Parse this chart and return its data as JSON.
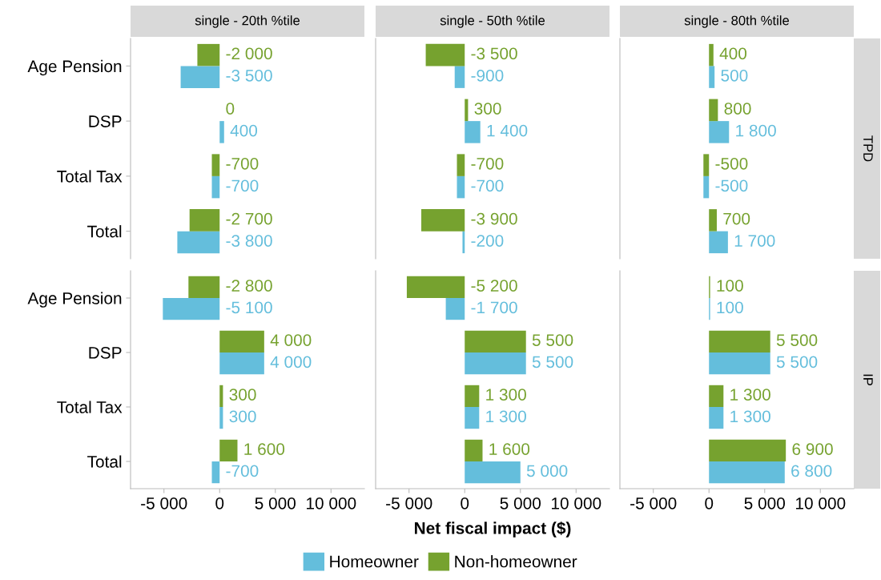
{
  "chart_data": [
    {
      "type": "bar",
      "orientation": "horizontal",
      "title": "single - 20th %tile",
      "legend": "bottom",
      "categories": [
        "Age Pension",
        "DSP",
        "Total Tax",
        "Total"
      ],
      "series": [
        {
          "name": "Homeowner",
          "color": "#64bedc",
          "values": [
            -3500,
            400,
            -700,
            -3800
          ]
        },
        {
          "name": "Non-homeowner",
          "color": "#76a22f",
          "values": [
            -2000,
            0,
            -700,
            -2700
          ]
        }
      ],
      "data_labels": true,
      "tick_labels": "y"
    },
    {
      "type": "bar",
      "orientation": "horizontal",
      "title": "single - 50th %tile",
      "categories": [
        null,
        null,
        null,
        null
      ],
      "series": [
        {
          "color": "#64bedc",
          "values": [
            -900,
            1400,
            -700,
            -200
          ]
        },
        {
          "color": "#76a22f",
          "values": [
            -3500,
            300,
            -700,
            -3900
          ]
        }
      ],
      "data_labels": true,
      "tick_labels": false
    },
    {
      "type": "bar",
      "orientation": "horizontal",
      "title": "single - 80th %tile",
      "y2label": "TPD",
      "categories": [
        null,
        null,
        null,
        null
      ],
      "series": [
        {
          "color": "#64bedc",
          "values": [
            500,
            1800,
            -500,
            1700
          ]
        },
        {
          "color": "#76a22f",
          "values": [
            400,
            800,
            -500,
            700
          ]
        }
      ],
      "data_labels": true,
      "tick_labels": false
    },
    {
      "type": "bar",
      "orientation": "horizontal",
      "categories": [
        "Age Pension",
        "DSP",
        "Total Tax",
        "Total"
      ],
      "series": [
        {
          "color": "#64bedc",
          "values": [
            -5100,
            4000,
            300,
            -700
          ]
        },
        {
          "color": "#76a22f",
          "values": [
            -2800,
            4000,
            300,
            1600
          ]
        }
      ],
      "data_labels": true,
      "xlim": [
        -8000,
        13000
      ],
      "xticks": [
        {
          "value": -5000,
          "label": "-5 000"
        },
        0,
        {
          "value": 5000,
          "label": "5 000"
        },
        {
          "value": 10000,
          "label": "10 000"
        }
      ]
    },
    {
      "type": "bar",
      "orientation": "horizontal",
      "xlabel": "Net fiscal impact ($)",
      "categories": [
        null,
        null,
        null,
        null
      ],
      "series": [
        {
          "color": "#64bedc",
          "values": [
            -1700,
            5500,
            1300,
            5000
          ]
        },
        {
          "color": "#76a22f",
          "values": [
            -5200,
            5500,
            1300,
            1600
          ]
        }
      ],
      "data_labels": true,
      "xlim": [
        -8000,
        13000
      ],
      "xticks": [
        {
          "value": -5000,
          "label": "-5 000"
        },
        0,
        {
          "value": 5000,
          "label": "5 000"
        },
        {
          "value": 10000,
          "label": "10 000"
        }
      ],
      "tick_labels": "x"
    },
    {
      "type": "bar",
      "orientation": "horizontal",
      "y2label": "IP",
      "categories": [
        null,
        null,
        null,
        null
      ],
      "series": [
        {
          "color": "#64bedc",
          "values": [
            100,
            5500,
            1300,
            6800
          ]
        },
        {
          "color": "#76a22f",
          "values": [
            100,
            5500,
            1300,
            6900
          ]
        }
      ],
      "data_labels": true,
      "xlim": [
        -8000,
        13000
      ],
      "xticks": [
        {
          "value": -5000,
          "label": "-5 000"
        },
        0,
        {
          "value": 5000,
          "label": "5 000"
        },
        {
          "value": 10000,
          "label": "10 000"
        }
      ],
      "tick_labels": "x"
    }
  ]
}
